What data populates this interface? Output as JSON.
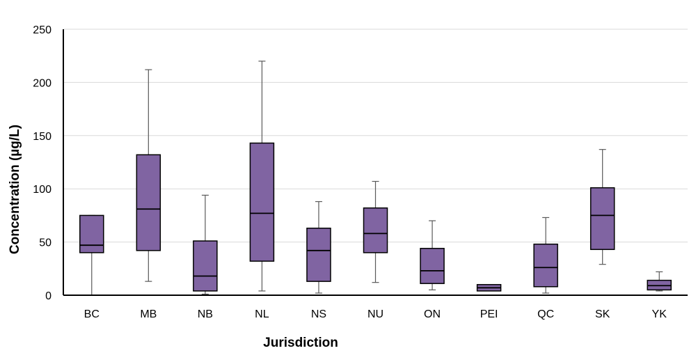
{
  "chart_data": {
    "type": "box",
    "title": "",
    "xlabel": "Jurisdiction",
    "ylabel": "Concentration (µg/L)",
    "ylim": [
      0,
      250
    ],
    "yticks": [
      0,
      50,
      100,
      150,
      200,
      250
    ],
    "grid": true,
    "colors": {
      "box_fill": "#8064a2",
      "box_stroke": "#000000",
      "whisker": "#595959",
      "grid": "#d9d9d9",
      "axis": "#000000"
    },
    "categories": [
      "BC",
      "MB",
      "NB",
      "NL",
      "NS",
      "NU",
      "ON",
      "PEI",
      "QC",
      "SK",
      "YK"
    ],
    "boxes": [
      {
        "category": "BC",
        "min": 0,
        "q1": 40,
        "median": 47,
        "q3": 75,
        "max": 75
      },
      {
        "category": "MB",
        "min": 13,
        "q1": 42,
        "median": 81,
        "q3": 132,
        "max": 212
      },
      {
        "category": "NB",
        "min": 1,
        "q1": 4,
        "median": 18,
        "q3": 51,
        "max": 94
      },
      {
        "category": "NL",
        "min": 4,
        "q1": 32,
        "median": 77,
        "q3": 143,
        "max": 220
      },
      {
        "category": "NS",
        "min": 2,
        "q1": 13,
        "median": 42,
        "q3": 63,
        "max": 88
      },
      {
        "category": "NU",
        "min": 12,
        "q1": 40,
        "median": 58,
        "q3": 82,
        "max": 107
      },
      {
        "category": "ON",
        "min": 5,
        "q1": 11,
        "median": 23,
        "q3": 44,
        "max": 70
      },
      {
        "category": "PEI",
        "min": 4,
        "q1": 4,
        "median": 7,
        "q3": 10,
        "max": 10
      },
      {
        "category": "QC",
        "min": 2,
        "q1": 8,
        "median": 26,
        "q3": 48,
        "max": 73
      },
      {
        "category": "SK",
        "min": 29,
        "q1": 43,
        "median": 75,
        "q3": 101,
        "max": 137
      },
      {
        "category": "YK",
        "min": 4,
        "q1": 5,
        "median": 9,
        "q3": 14,
        "max": 22
      }
    ]
  }
}
